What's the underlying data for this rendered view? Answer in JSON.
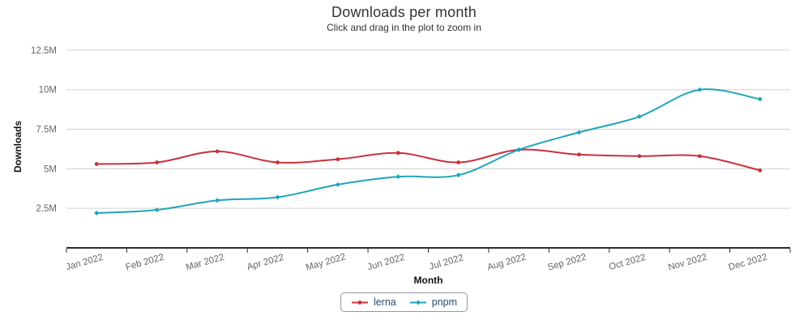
{
  "chart_data": {
    "type": "line",
    "title": "Downloads per month",
    "subtitle": "Click and drag in the plot to zoom in",
    "xlabel": "Month",
    "ylabel": "Downloads",
    "categories": [
      "Jan 2022",
      "Feb 2022",
      "Mar 2022",
      "Apr 2022",
      "May 2022",
      "Jun 2022",
      "Jul 2022",
      "Aug 2022",
      "Sep 2022",
      "Oct 2022",
      "Nov 2022",
      "Dec 2022"
    ],
    "series": [
      {
        "name": "lerna",
        "color": "#ca303c",
        "marker": "circle",
        "values": [
          5.3,
          5.4,
          6.1,
          5.4,
          5.6,
          6.0,
          5.4,
          6.2,
          5.9,
          5.8,
          5.8,
          4.9
        ]
      },
      {
        "name": "pnpm",
        "color": "#1fa5b8",
        "marker": "diamond",
        "values": [
          2.2,
          2.4,
          3.0,
          3.2,
          4.0,
          4.5,
          4.6,
          6.2,
          7.3,
          8.3,
          10.0,
          9.4
        ]
      }
    ],
    "unit": "M (millions of downloads)",
    "ylim": [
      0,
      12.8
    ],
    "yticks": [
      {
        "value": 2.5,
        "label": "2.5M"
      },
      {
        "value": 5,
        "label": "5M"
      },
      {
        "value": 7.5,
        "label": "7.5M"
      },
      {
        "value": 10,
        "label": "10M"
      },
      {
        "value": 12.5,
        "label": "12.5M"
      }
    ],
    "grid": true,
    "legend_position": "bottom-center",
    "x_tick_rotation": -16,
    "curve": "spline"
  },
  "colors": {
    "grid": "#d0d0d0",
    "axis_line": "#2b2b2b",
    "tick_label": "#666666",
    "legend_text": "#274b6d",
    "legend_border": "#999999",
    "background": "#ffffff"
  }
}
